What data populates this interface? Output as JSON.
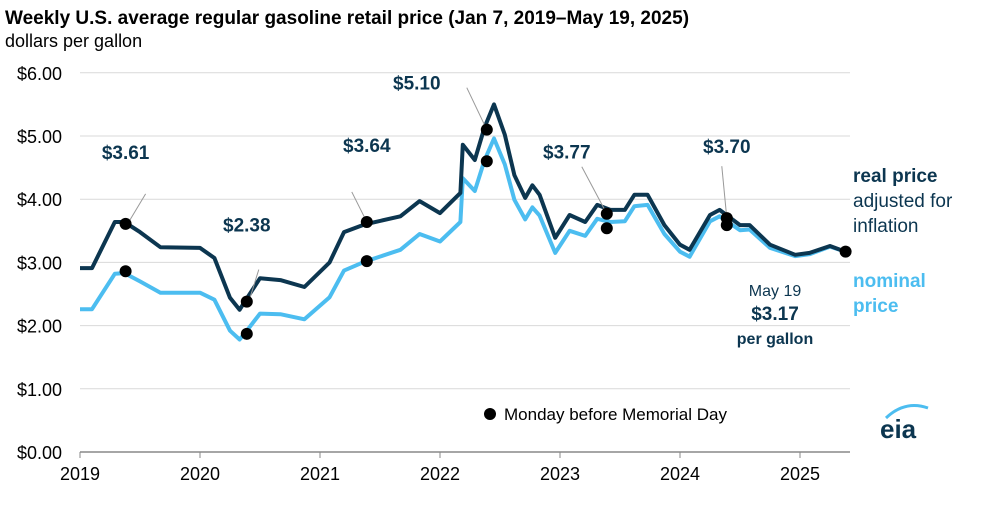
{
  "chart_data": {
    "type": "line",
    "title": "Weekly U.S. average regular gasoline retail price (Jan 7, 2019–May 19, 2025)",
    "subtitle": "dollars per gallon",
    "ylim": [
      0,
      6
    ],
    "xlim": [
      2019,
      2025.4
    ],
    "grid": true,
    "y_ticks": [
      0,
      1,
      2,
      3,
      4,
      5,
      6
    ],
    "y_tick_labels": [
      "$0.00",
      "$1.00",
      "$2.00",
      "$3.00",
      "$4.00",
      "$5.00",
      "$6.00"
    ],
    "x_ticks": [
      2019,
      2020,
      2021,
      2022,
      2023,
      2024,
      2025
    ],
    "x_tick_labels": [
      "2019",
      "2020",
      "2021",
      "2022",
      "2023",
      "2024",
      "2025"
    ],
    "x": [
      2019.0,
      2019.1,
      2019.29,
      2019.37,
      2019.5,
      2019.67,
      2020.0,
      2020.12,
      2020.25,
      2020.33,
      2020.37,
      2020.5,
      2020.67,
      2020.87,
      2021.08,
      2021.2,
      2021.37,
      2021.67,
      2021.83,
      2022.0,
      2022.17,
      2022.19,
      2022.29,
      2022.37,
      2022.45,
      2022.54,
      2022.62,
      2022.71,
      2022.77,
      2022.83,
      2022.96,
      2023.08,
      2023.21,
      2023.31,
      2023.42,
      2023.54,
      2023.62,
      2023.73,
      2023.87,
      2024.0,
      2024.08,
      2024.25,
      2024.33,
      2024.5,
      2024.58,
      2024.75,
      2024.96,
      2025.08,
      2025.25,
      2025.38
    ],
    "series": [
      {
        "name": "real price",
        "color": "#0c3650",
        "values": [
          2.91,
          2.91,
          3.64,
          3.64,
          3.48,
          3.24,
          3.23,
          3.07,
          2.44,
          2.25,
          2.37,
          2.75,
          2.72,
          2.61,
          3.0,
          3.48,
          3.6,
          3.73,
          3.97,
          3.78,
          4.1,
          4.86,
          4.62,
          5.13,
          5.5,
          5.02,
          4.38,
          4.02,
          4.22,
          4.07,
          3.39,
          3.75,
          3.64,
          3.91,
          3.83,
          3.83,
          4.07,
          4.07,
          3.59,
          3.28,
          3.2,
          3.75,
          3.83,
          3.59,
          3.59,
          3.28,
          3.12,
          3.15,
          3.26,
          3.17
        ]
      },
      {
        "name": "nominal price",
        "color": "#4cbdf0",
        "values": [
          2.26,
          2.26,
          2.82,
          2.83,
          2.7,
          2.52,
          2.52,
          2.41,
          1.92,
          1.78,
          1.87,
          2.19,
          2.18,
          2.1,
          2.45,
          2.87,
          3.01,
          3.2,
          3.45,
          3.33,
          3.64,
          4.33,
          4.13,
          4.61,
          4.96,
          4.55,
          3.99,
          3.68,
          3.87,
          3.74,
          3.15,
          3.5,
          3.42,
          3.69,
          3.64,
          3.65,
          3.89,
          3.91,
          3.45,
          3.17,
          3.09,
          3.65,
          3.73,
          3.51,
          3.52,
          3.23,
          3.1,
          3.13,
          3.25,
          3.17
        ]
      }
    ],
    "memorial_day_points": [
      {
        "x": 2019.38,
        "real": 3.61,
        "nominal": 2.86,
        "label": "$3.61"
      },
      {
        "x": 2020.39,
        "real": 2.38,
        "nominal": 1.87,
        "label": "$2.38"
      },
      {
        "x": 2021.39,
        "real": 3.64,
        "nominal": 3.02,
        "label": "$3.64"
      },
      {
        "x": 2022.39,
        "real": 5.1,
        "nominal": 4.6,
        "label": "$5.10"
      },
      {
        "x": 2023.39,
        "real": 3.77,
        "nominal": 3.54,
        "label": "$3.77"
      },
      {
        "x": 2024.39,
        "real": 3.7,
        "nominal": 3.59,
        "label": "$3.70"
      },
      {
        "x": 2025.38,
        "real": 3.17,
        "nominal": 3.17,
        "label": ""
      }
    ],
    "legend": {
      "marker_label": "Monday before Memorial Day",
      "placement": "bottom-right"
    },
    "annotations": {
      "real_line1": "real price",
      "real_line2": "adjusted for",
      "real_line3": "inflation",
      "nominal_line1": "nominal",
      "nominal_line2": "price",
      "latest_date": "May 19",
      "latest_value": "$3.17",
      "latest_unit": "per gallon"
    },
    "logo": "eia"
  }
}
